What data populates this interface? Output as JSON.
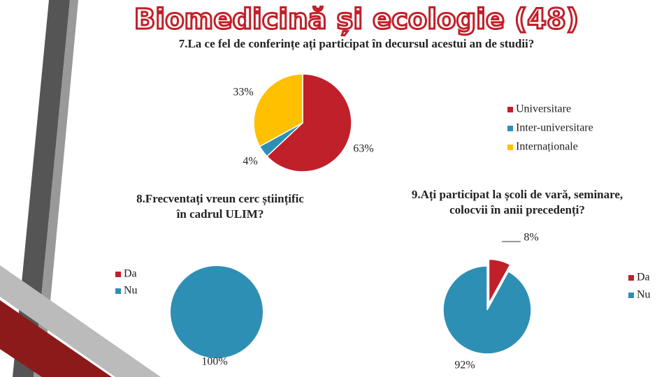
{
  "title": "Biomedicină și ecologie (48)",
  "chart_data": [
    {
      "type": "pie",
      "title": "7.La ce fel de conferințe ați participat în decursul acestui an de studii?",
      "categories": [
        "Universitare",
        "Inter-universitare",
        "Internaționale"
      ],
      "values": [
        63,
        4,
        33
      ],
      "value_labels": [
        "63%",
        "4%",
        "33%"
      ],
      "colors": [
        "#c0202a",
        "#2e8fb5",
        "#ffc000"
      ]
    },
    {
      "type": "pie",
      "title": "8.Frecventați vreun cerc științific în cadrul ULIM?",
      "categories": [
        "Da",
        "Nu"
      ],
      "values": [
        0,
        100
      ],
      "value_labels": [
        null,
        "100%"
      ],
      "colors": [
        "#c0202a",
        "#2e8fb5"
      ]
    },
    {
      "type": "pie",
      "title": "9.Ați participat la școli de vară, seminare, colocvii în anii precedenți?",
      "categories": [
        "Da",
        "Nu"
      ],
      "values": [
        8,
        92
      ],
      "value_labels": [
        "8%",
        "92%"
      ],
      "colors": [
        "#c0202a",
        "#2e8fb5"
      ]
    }
  ]
}
